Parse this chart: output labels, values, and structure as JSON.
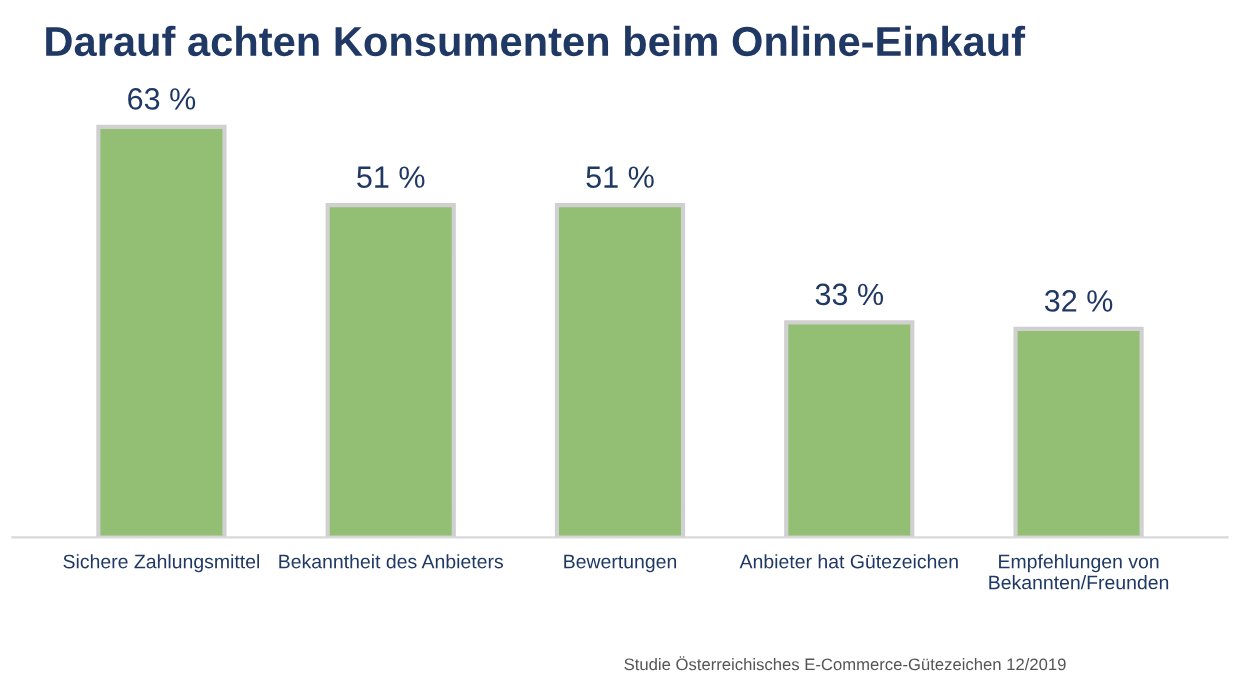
{
  "chart_data": {
    "type": "bar",
    "title": "Darauf achten Konsumenten beim Online-Einkauf",
    "categories": [
      "Sichere Zahlungsmittel",
      "Bekanntheit des Anbieters",
      "Bewertungen",
      "Anbieter hat Gütezeichen",
      "Empfehlungen von\nBekannten/Freunden"
    ],
    "values": [
      63,
      51,
      51,
      33,
      32
    ],
    "value_labels": [
      "63 %",
      "51 %",
      "51 %",
      "33 %",
      "32 %"
    ],
    "color": "#93bf75",
    "annotations": [
      "Studie Österreichisches E-Commerce-Gütezeichen 12/2019"
    ],
    "grid": false,
    "legend": false
  }
}
